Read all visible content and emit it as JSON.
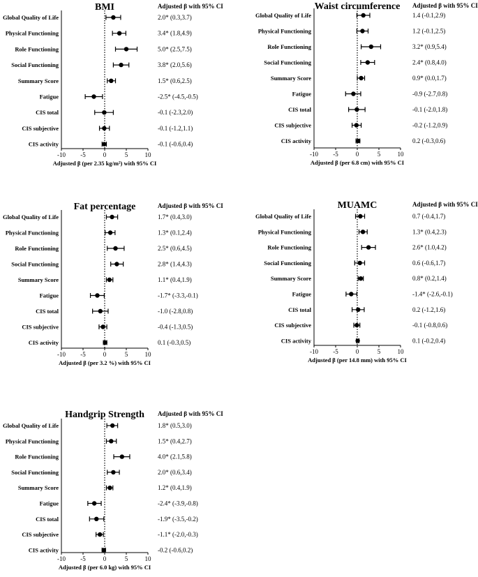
{
  "chart_data": [
    {
      "type": "forest",
      "title": "BMI",
      "xlabel": "Adjusted β (per 2.35 kg/m²) with 95% CI",
      "ci_header": "Adjusted β with 95% CI",
      "xlim": [
        -10,
        10
      ],
      "xticks": [
        -10,
        -5,
        0,
        5,
        10
      ],
      "reference_line": 0,
      "rows": [
        {
          "label": "Global Quality of Life",
          "estimate": 2.0,
          "lower": 0.3,
          "upper": 3.7,
          "ci_text": "2.0* (0.3,3.7)"
        },
        {
          "label": "Physical Functioning",
          "estimate": 3.4,
          "lower": 1.8,
          "upper": 4.9,
          "ci_text": "3.4* (1.8,4.9)"
        },
        {
          "label": "Role Functioning",
          "estimate": 5.0,
          "lower": 2.5,
          "upper": 7.5,
          "ci_text": "5.0* (2.5,7.5)"
        },
        {
          "label": "Social Functioning",
          "estimate": 3.8,
          "lower": 2.0,
          "upper": 5.6,
          "ci_text": "3.8* (2.0,5.6)"
        },
        {
          "label": "Summary Score",
          "estimate": 1.5,
          "lower": 0.6,
          "upper": 2.5,
          "ci_text": "1.5* (0.6,2.5)"
        },
        {
          "label": "Fatigue",
          "estimate": -2.5,
          "lower": -4.5,
          "upper": -0.5,
          "ci_text": "-2.5* (-4.5,-0.5)"
        },
        {
          "label": "CIS total",
          "estimate": -0.1,
          "lower": -2.3,
          "upper": 2.0,
          "ci_text": "-0.1 (-2.3,2.0)"
        },
        {
          "label": "CIS subjective",
          "estimate": -0.1,
          "lower": -1.2,
          "upper": 1.1,
          "ci_text": "-0.1 (-1.2,1.1)"
        },
        {
          "label": "CIS activity",
          "estimate": -0.1,
          "lower": -0.6,
          "upper": 0.4,
          "ci_text": "-0.1 (-0.6,0.4)"
        }
      ]
    },
    {
      "type": "forest",
      "title": "Waist circumference",
      "xlabel": "Adjusted β (per 6.8 cm)  with 95% CI",
      "ci_header": "Adjusted β with 95% CI",
      "xlim": [
        -10,
        10
      ],
      "xticks": [
        -10,
        -5,
        0,
        5,
        10
      ],
      "reference_line": 0,
      "rows": [
        {
          "label": "Global Quality of Life",
          "estimate": 1.4,
          "lower": -0.1,
          "upper": 2.9,
          "ci_text": "1.4 (-0.1,2.9)"
        },
        {
          "label": "Physical Functioning",
          "estimate": 1.2,
          "lower": -0.1,
          "upper": 2.5,
          "ci_text": "1.2 (-0.1,2.5)"
        },
        {
          "label": "Role Functioning",
          "estimate": 3.2,
          "lower": 0.9,
          "upper": 5.4,
          "ci_text": "3.2* (0.9,5.4)"
        },
        {
          "label": "Social Functioning",
          "estimate": 2.4,
          "lower": 0.8,
          "upper": 4.0,
          "ci_text": "2.4* (0.8,4.0)"
        },
        {
          "label": "Summary Score",
          "estimate": 0.9,
          "lower": 0.0,
          "upper": 1.7,
          "ci_text": "0.9* (0.0,1.7)"
        },
        {
          "label": "Fatigue",
          "estimate": -0.9,
          "lower": -2.7,
          "upper": 0.8,
          "ci_text": "-0.9 (-2.7,0.8)"
        },
        {
          "label": "CIS total",
          "estimate": -0.1,
          "lower": -2.0,
          "upper": 1.8,
          "ci_text": "-0.1 (-2.0,1.8)"
        },
        {
          "label": "CIS subjective",
          "estimate": -0.2,
          "lower": -1.2,
          "upper": 0.9,
          "ci_text": "-0.2 (-1.2,0.9)"
        },
        {
          "label": "CIS activity",
          "estimate": 0.2,
          "lower": -0.3,
          "upper": 0.6,
          "ci_text": "0.2 (-0.3,0.6)"
        }
      ]
    },
    {
      "type": "forest",
      "title": "Fat percentage",
      "xlabel": "Adjusted β (per 3.2 %) with 95% CI",
      "ci_header": "Adjusted β with 95% CI",
      "xlim": [
        -10,
        10
      ],
      "xticks": [
        -10,
        -5,
        0,
        5,
        10
      ],
      "reference_line": 0,
      "rows": [
        {
          "label": "Global Quality of Life",
          "estimate": 1.7,
          "lower": 0.4,
          "upper": 3.0,
          "ci_text": "1.7* (0.4,3.0)"
        },
        {
          "label": "Physical Functioning",
          "estimate": 1.3,
          "lower": 0.1,
          "upper": 2.4,
          "ci_text": "1.3* (0.1,2.4)"
        },
        {
          "label": "Role Functioning",
          "estimate": 2.5,
          "lower": 0.6,
          "upper": 4.5,
          "ci_text": "2.5* (0.6,4.5)"
        },
        {
          "label": "Social Functioning",
          "estimate": 2.8,
          "lower": 1.4,
          "upper": 4.3,
          "ci_text": "2.8* (1.4,4.3)"
        },
        {
          "label": "Summary Score",
          "estimate": 1.1,
          "lower": 0.4,
          "upper": 1.9,
          "ci_text": "1.1* (0.4,1.9)"
        },
        {
          "label": "Fatigue",
          "estimate": -1.7,
          "lower": -3.3,
          "upper": -0.1,
          "ci_text": "-1.7* (-3.3,-0.1)"
        },
        {
          "label": "CIS total",
          "estimate": -1.0,
          "lower": -2.8,
          "upper": 0.8,
          "ci_text": "-1.0 (-2.8,0.8)"
        },
        {
          "label": "CIS subjective",
          "estimate": -0.4,
          "lower": -1.3,
          "upper": 0.5,
          "ci_text": "-0.4 (-1.3,0.5)"
        },
        {
          "label": "CIS activity",
          "estimate": 0.1,
          "lower": -0.3,
          "upper": 0.5,
          "ci_text": "0.1 (-0.3,0.5)"
        }
      ]
    },
    {
      "type": "forest",
      "title": "MUAMC",
      "xlabel": "Adjusted β (per 14.8 mm) with 95% CI",
      "ci_header": "Adjusted β with 95% CI",
      "xlim": [
        -10,
        10
      ],
      "xticks": [
        -10,
        -5,
        0,
        5,
        10
      ],
      "reference_line": 0,
      "rows": [
        {
          "label": "Global Quality of Life",
          "estimate": 0.7,
          "lower": -0.4,
          "upper": 1.7,
          "ci_text": "0.7 (-0.4,1.7)"
        },
        {
          "label": "Physical Functioning",
          "estimate": 1.3,
          "lower": 0.4,
          "upper": 2.3,
          "ci_text": "1.3* (0.4,2.3)"
        },
        {
          "label": "Role Functioning",
          "estimate": 2.6,
          "lower": 1.0,
          "upper": 4.2,
          "ci_text": "2.6* (1.0,4.2)"
        },
        {
          "label": "Social Functioning",
          "estimate": 0.6,
          "lower": -0.6,
          "upper": 1.7,
          "ci_text": "0.6 (-0.6,1.7)"
        },
        {
          "label": "Summary Score",
          "estimate": 0.8,
          "lower": 0.2,
          "upper": 1.4,
          "ci_text": "0.8* (0.2,1.4)"
        },
        {
          "label": "Fatigue",
          "estimate": -1.4,
          "lower": -2.6,
          "upper": -0.1,
          "ci_text": "-1.4* (-2.6,-0.1)"
        },
        {
          "label": "CIS total",
          "estimate": 0.2,
          "lower": -1.2,
          "upper": 1.6,
          "ci_text": "0.2 (-1.2,1.6)"
        },
        {
          "label": "CIS subjective",
          "estimate": -0.1,
          "lower": -0.8,
          "upper": 0.6,
          "ci_text": "-0.1 (-0.8,0.6)"
        },
        {
          "label": "CIS activity",
          "estimate": 0.1,
          "lower": -0.2,
          "upper": 0.4,
          "ci_text": "0.1 (-0.2,0.4)"
        }
      ]
    },
    {
      "type": "forest",
      "title": "Handgrip Strength",
      "xlabel": "Adjusted β (per 6.0 kg) with 95% CI",
      "ci_header": "Adjusted β with 95% CI",
      "xlim": [
        -10,
        10
      ],
      "xticks": [
        -10,
        -5,
        0,
        5,
        10
      ],
      "reference_line": 0,
      "rows": [
        {
          "label": "Global Quality of Life",
          "estimate": 1.8,
          "lower": 0.5,
          "upper": 3.0,
          "ci_text": "1.8* (0.5,3.0)"
        },
        {
          "label": "Physical Functioning",
          "estimate": 1.5,
          "lower": 0.4,
          "upper": 2.7,
          "ci_text": "1.5* (0.4,2.7)"
        },
        {
          "label": "Role Functioning",
          "estimate": 4.0,
          "lower": 2.1,
          "upper": 5.8,
          "ci_text": "4.0* (2.1,5.8)"
        },
        {
          "label": "Social Functioning",
          "estimate": 2.0,
          "lower": 0.6,
          "upper": 3.4,
          "ci_text": "2.0* (0.6,3.4)"
        },
        {
          "label": "Summary Score",
          "estimate": 1.2,
          "lower": 0.4,
          "upper": 1.9,
          "ci_text": "1.2* (0.4,1.9)"
        },
        {
          "label": "Fatigue",
          "estimate": -2.4,
          "lower": -3.9,
          "upper": -0.8,
          "ci_text": "-2.4* (-3.9,-0.8)"
        },
        {
          "label": "CIS total",
          "estimate": -1.9,
          "lower": -3.5,
          "upper": -0.2,
          "ci_text": "-1.9* (-3.5,-0.2)"
        },
        {
          "label": "CIS subjective",
          "estimate": -1.1,
          "lower": -2.0,
          "upper": -0.3,
          "ci_text": "-1.1* (-2.0,-0.3)"
        },
        {
          "label": "CIS activity",
          "estimate": -0.2,
          "lower": -0.6,
          "upper": 0.2,
          "ci_text": "-0.2 (-0.6,0.2)"
        }
      ]
    }
  ]
}
